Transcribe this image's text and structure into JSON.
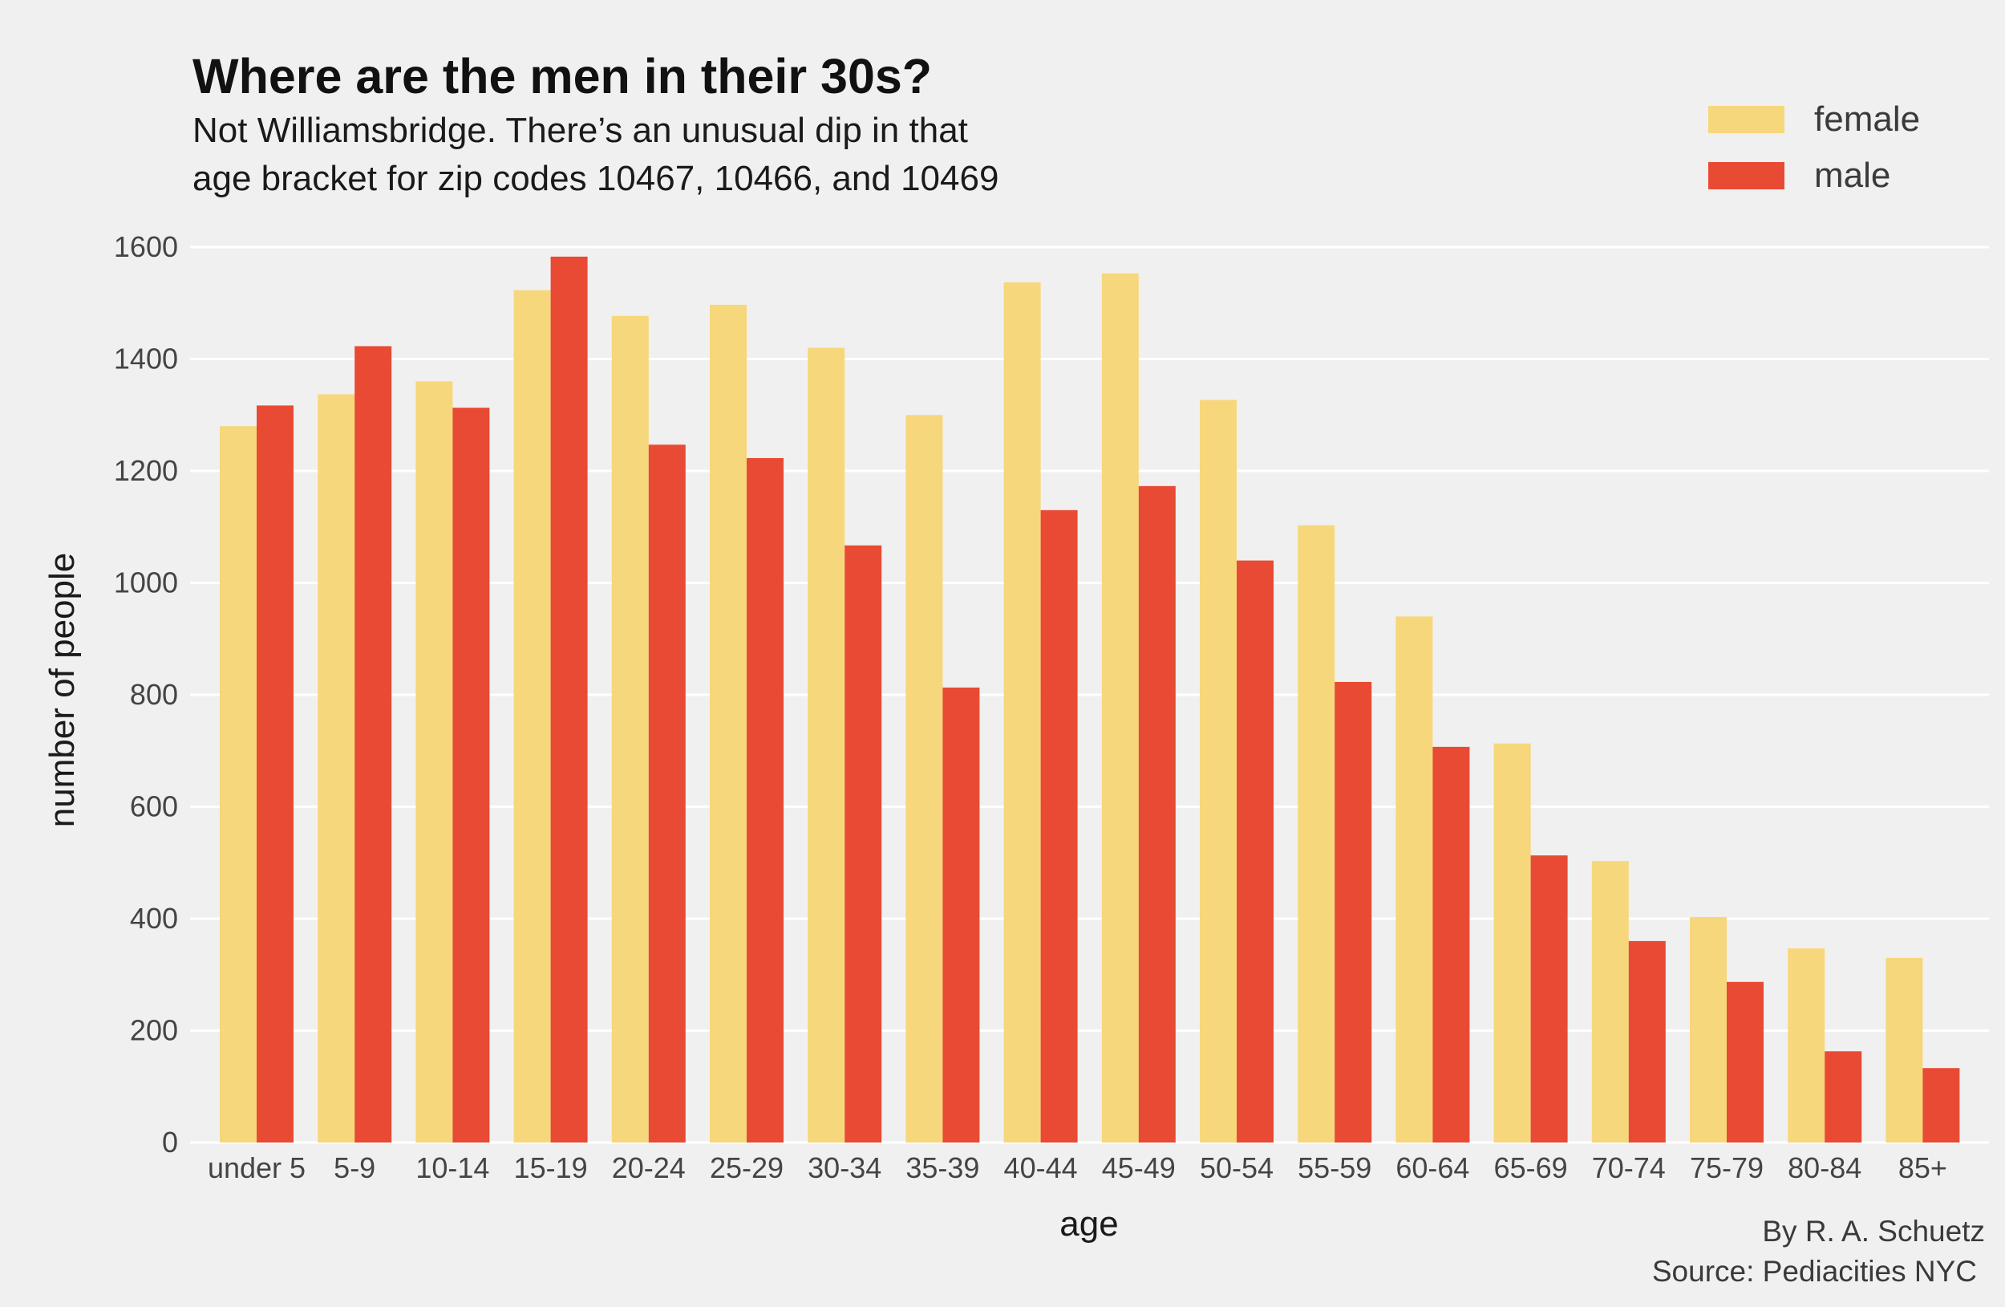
{
  "chart_data": {
    "type": "bar",
    "title": "Where are the men in their 30s?",
    "subtitle": [
      "Not Williamsbridge. There’s an unusual dip in that",
      "age bracket for zip codes 10467, 10466, and 10469"
    ],
    "xlabel": "age",
    "ylabel": "number of people",
    "ylim": [
      0,
      1600
    ],
    "yticks": [
      0,
      200,
      400,
      600,
      800,
      1000,
      1200,
      1400,
      1600
    ],
    "categories": [
      "under 5",
      "5-9",
      "10-14",
      "15-19",
      "20-24",
      "25-29",
      "30-34",
      "35-39",
      "40-44",
      "45-49",
      "50-54",
      "55-59",
      "60-64",
      "65-69",
      "70-74",
      "75-79",
      "80-84",
      "85+"
    ],
    "series": [
      {
        "name": "female",
        "color": "#f7d77b",
        "values": [
          1280,
          1337,
          1360,
          1523,
          1477,
          1497,
          1420,
          1300,
          1537,
          1553,
          1327,
          1103,
          940,
          713,
          503,
          403,
          347,
          330
        ]
      },
      {
        "name": "male",
        "color": "#e84a33",
        "values": [
          1317,
          1423,
          1313,
          1583,
          1247,
          1223,
          1067,
          813,
          1130,
          1173,
          1040,
          823,
          707,
          513,
          360,
          287,
          163,
          133
        ]
      }
    ],
    "grid": true,
    "legend_position": "top-right",
    "credits": [
      "By R. A. Schuetz",
      "Source: Pediacities NYC"
    ]
  }
}
